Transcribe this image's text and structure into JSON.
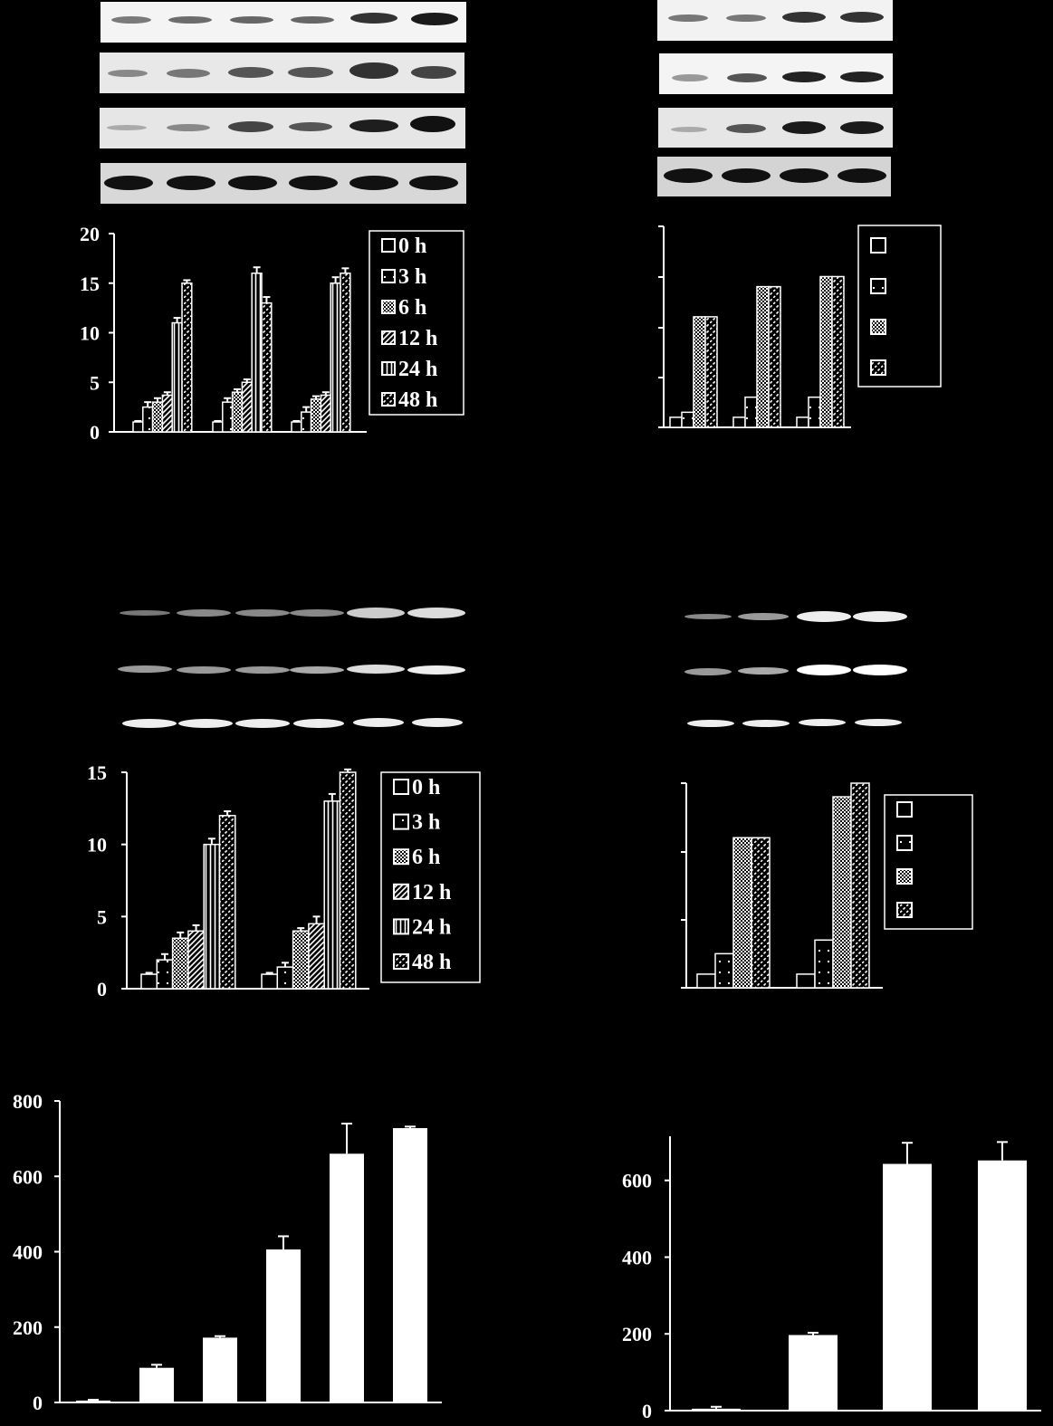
{
  "colors": {
    "background": "#000000",
    "foreground": "#ffffff",
    "band": "#111111"
  },
  "legend_hours": [
    "0 h",
    "3 h",
    "6 h",
    "12 h",
    "24 h",
    "48 h"
  ],
  "chart_data": [
    {
      "id": "A",
      "type": "bar",
      "title": "",
      "xlabel": "",
      "ylabel": "",
      "ylim": [
        0,
        20
      ],
      "yticks": [
        0,
        5,
        10,
        15,
        20
      ],
      "legend_placement": "top-right",
      "categories": [
        "",
        "",
        ""
      ],
      "series": [
        {
          "name": "0 h",
          "pattern": "open",
          "values": [
            1,
            1,
            1
          ],
          "errors": [
            0.1,
            0.1,
            0.1
          ]
        },
        {
          "name": "3 h",
          "pattern": "dots",
          "values": [
            2.5,
            3,
            2
          ],
          "errors": [
            0.5,
            0.4,
            0.5
          ]
        },
        {
          "name": "6 h",
          "pattern": "stipple",
          "values": [
            3,
            4,
            3.3
          ],
          "errors": [
            0.4,
            0.3,
            0.3
          ]
        },
        {
          "name": "12 h",
          "pattern": "diag",
          "values": [
            3.7,
            5,
            3.7
          ],
          "errors": [
            0.3,
            0.3,
            0.3
          ]
        },
        {
          "name": "24 h",
          "pattern": "vert",
          "values": [
            11,
            16,
            15
          ],
          "errors": [
            0.5,
            0.6,
            0.6
          ]
        },
        {
          "name": "48 h",
          "pattern": "diagdash",
          "values": [
            15,
            13,
            16
          ],
          "errors": [
            0.3,
            0.6,
            0.5
          ]
        }
      ]
    },
    {
      "id": "B",
      "type": "bar",
      "title": "",
      "xlabel": "",
      "ylabel": "",
      "ylim": [
        0,
        4
      ],
      "yticks": [],
      "legend_placement": "top-right",
      "categories": [
        "",
        "",
        ""
      ],
      "series": [
        {
          "pattern": "open",
          "values": [
            0.2,
            0.2,
            0.2
          ]
        },
        {
          "pattern": "dots",
          "values": [
            0.3,
            0.6,
            0.6
          ]
        },
        {
          "pattern": "stipple",
          "values": [
            2.2,
            2.8,
            3.0
          ]
        },
        {
          "pattern": "diagdash",
          "values": [
            2.2,
            2.8,
            3.0
          ]
        }
      ]
    },
    {
      "id": "C",
      "type": "bar",
      "title": "",
      "xlabel": "",
      "ylabel": "",
      "ylim": [
        0,
        15
      ],
      "yticks": [
        0,
        5,
        10,
        15
      ],
      "legend_placement": "top-right",
      "categories": [
        "",
        ""
      ],
      "series": [
        {
          "name": "0 h",
          "pattern": "open",
          "values": [
            1,
            1
          ],
          "errors": [
            0.1,
            0.1
          ]
        },
        {
          "name": "3 h",
          "pattern": "dots",
          "values": [
            2,
            1.5
          ],
          "errors": [
            0.4,
            0.3
          ]
        },
        {
          "name": "6 h",
          "pattern": "stipple",
          "values": [
            3.5,
            4
          ],
          "errors": [
            0.4,
            0.2
          ]
        },
        {
          "name": "12 h",
          "pattern": "diag",
          "values": [
            4,
            4.5
          ],
          "errors": [
            0.4,
            0.5
          ]
        },
        {
          "name": "24 h",
          "pattern": "vert",
          "values": [
            10,
            13
          ],
          "errors": [
            0.4,
            0.5
          ]
        },
        {
          "name": "48 h",
          "pattern": "diagdash",
          "values": [
            12,
            15
          ],
          "errors": [
            0.3,
            0.2
          ]
        }
      ]
    },
    {
      "id": "D",
      "type": "bar",
      "title": "",
      "xlabel": "",
      "ylabel": "",
      "ylim": [
        0,
        3
      ],
      "yticks": [],
      "legend_placement": "top-right",
      "categories": [
        "",
        ""
      ],
      "series": [
        {
          "pattern": "open",
          "values": [
            0.2,
            0.2
          ]
        },
        {
          "pattern": "dots",
          "values": [
            0.5,
            0.7
          ]
        },
        {
          "pattern": "stipple",
          "values": [
            2.2,
            2.8
          ]
        },
        {
          "pattern": "diagdash",
          "values": [
            2.2,
            3.0
          ]
        }
      ]
    },
    {
      "id": "E",
      "type": "bar",
      "title": "",
      "xlabel": "",
      "ylabel": "",
      "ylim": [
        0,
        800
      ],
      "yticks": [
        0,
        200,
        400,
        600,
        800
      ],
      "categories": [
        "",
        "",
        "",
        "",
        "",
        ""
      ],
      "values": [
        5,
        92,
        172,
        406,
        660,
        728
      ],
      "errors": [
        2,
        8,
        4,
        35,
        80,
        4
      ]
    },
    {
      "id": "F",
      "type": "bar",
      "title": "",
      "xlabel": "",
      "ylabel": "",
      "ylim": [
        0,
        715
      ],
      "yticks": [
        0,
        200,
        400,
        600
      ],
      "categories": [
        "",
        "",
        "",
        ""
      ],
      "values": [
        5,
        197,
        643,
        652
      ],
      "errors": [
        5,
        6,
        55,
        48
      ]
    }
  ]
}
